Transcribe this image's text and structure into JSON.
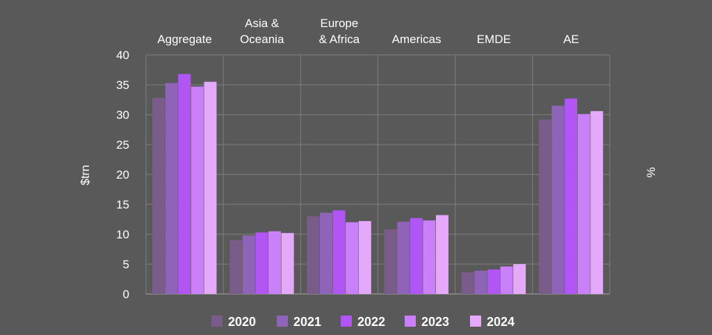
{
  "chart_data": {
    "type": "bar",
    "title": "",
    "panels": [
      "Aggregate",
      "Asia &\nOceania",
      "Europe\n& Africa",
      "Americas",
      "EMDE",
      "AE"
    ],
    "ylabel": "$trn",
    "ylabel_right": "%",
    "ylim": [
      0,
      40
    ],
    "yticks": [
      0,
      5,
      10,
      15,
      20,
      25,
      30,
      35,
      40
    ],
    "grid": true,
    "legend_position": "bottom",
    "colors": [
      "#7a5c8a",
      "#8f63b8",
      "#b255f5",
      "#ca80f8",
      "#e5a9fb"
    ],
    "series": [
      {
        "name": "2020",
        "values": [
          32.8,
          9.0,
          13.0,
          10.8,
          3.6,
          29.2
        ]
      },
      {
        "name": "2021",
        "values": [
          35.3,
          9.8,
          13.6,
          12.1,
          3.9,
          31.5
        ]
      },
      {
        "name": "2022",
        "values": [
          36.8,
          10.3,
          14.0,
          12.7,
          4.1,
          32.7
        ]
      },
      {
        "name": "2023",
        "values": [
          34.7,
          10.5,
          12.0,
          12.3,
          4.6,
          30.1
        ]
      },
      {
        "name": "2024",
        "values": [
          35.5,
          10.2,
          12.2,
          13.2,
          5.0,
          30.6
        ]
      }
    ]
  }
}
